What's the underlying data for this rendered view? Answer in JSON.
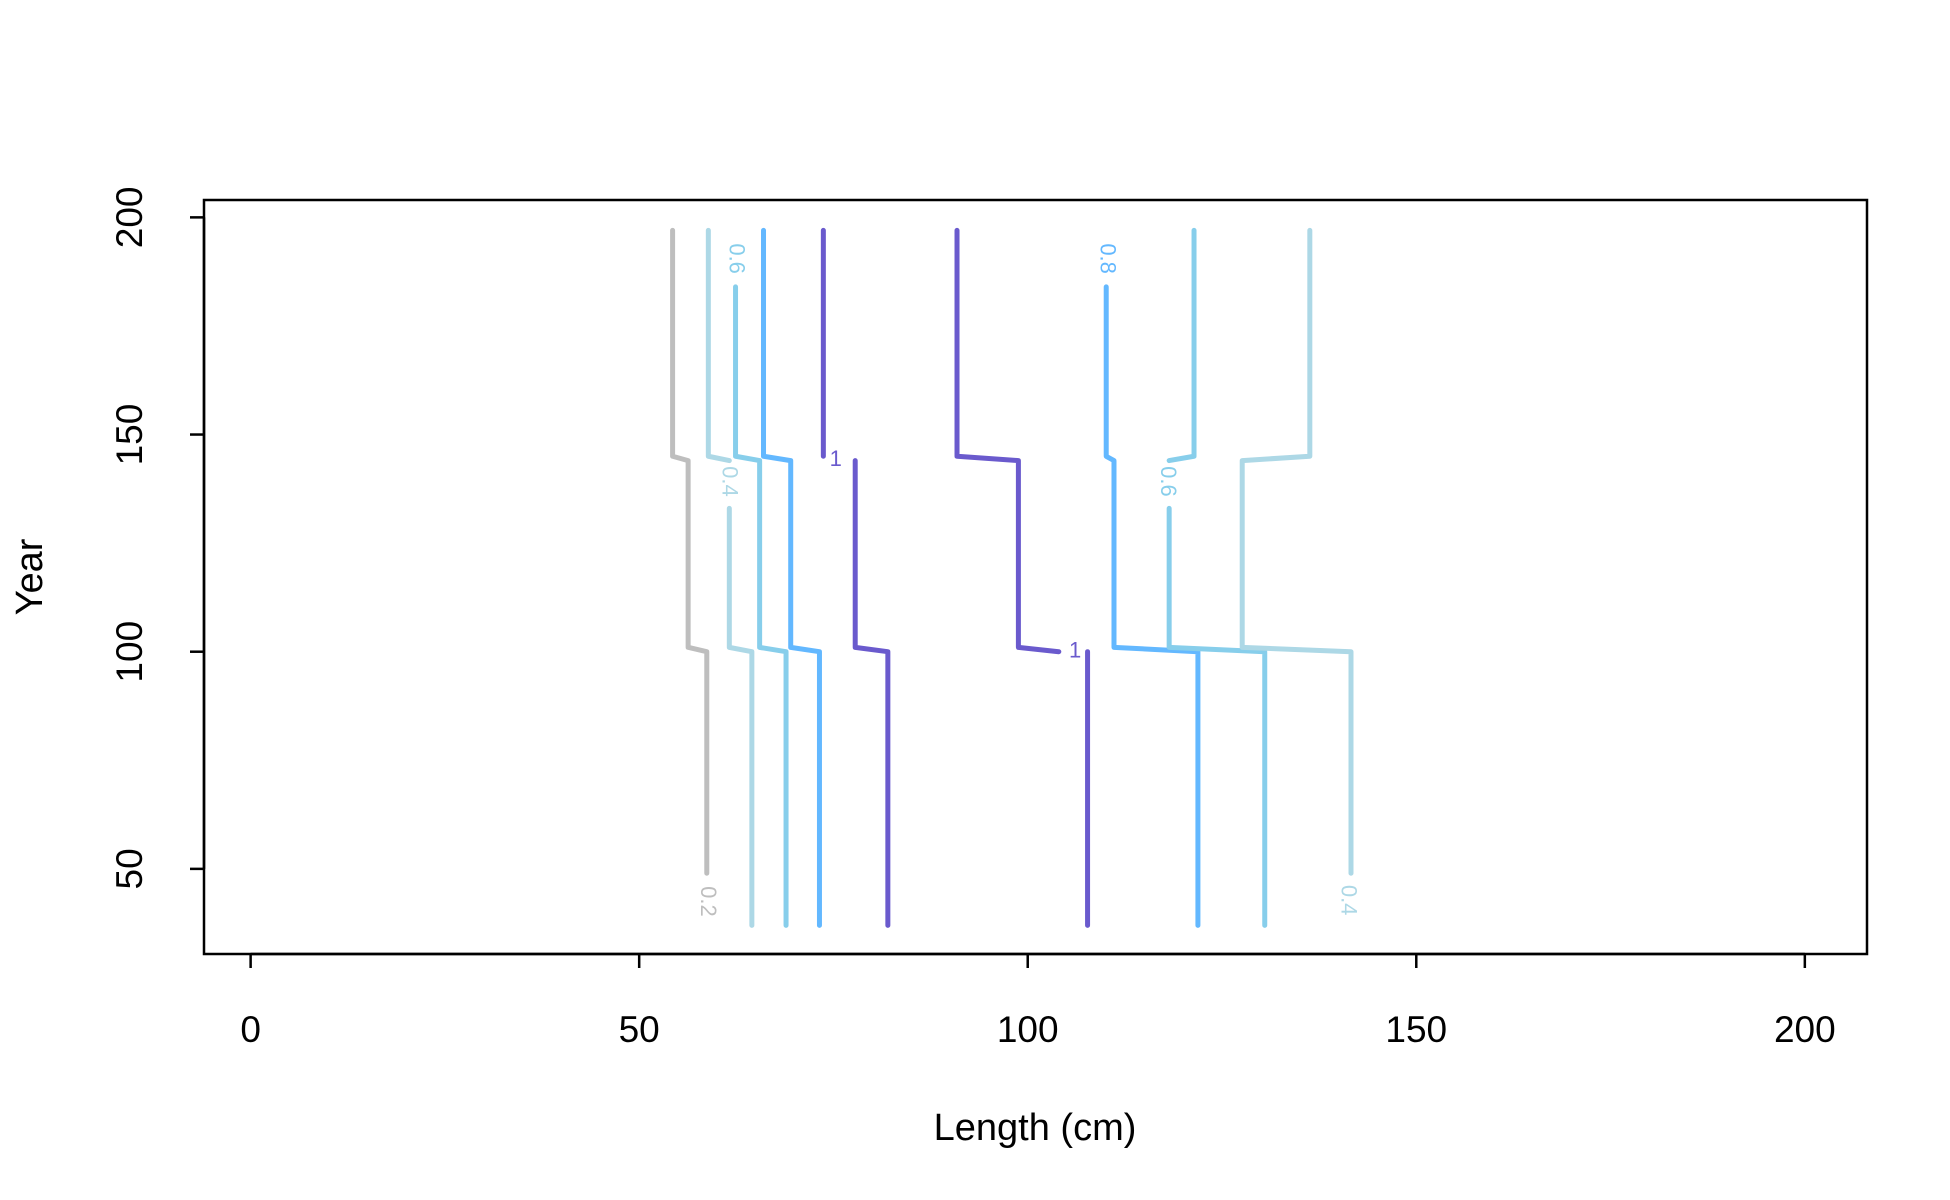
{
  "chart_data": {
    "type": "contour",
    "xlabel": "Length (cm)",
    "ylabel": "Year",
    "xlim": [
      -6,
      208
    ],
    "ylim": [
      30.4,
      204
    ],
    "xticks": [
      0,
      50,
      100,
      150,
      200
    ],
    "yticks": [
      50,
      100,
      150,
      200
    ],
    "series": [
      {
        "color": "#bebebe",
        "x": [
          54.3,
          54.3,
          56.3,
          56.3,
          58.7,
          58.7
        ],
        "y": [
          197,
          145,
          144,
          101,
          100,
          49
        ]
      },
      {
        "color": "#add8e6",
        "x": [
          58.9,
          58.9,
          61.6,
          null,
          61.6,
          61.6,
          64.5,
          64.5
        ],
        "y": [
          197,
          145,
          144,
          null,
          133,
          101,
          100,
          37
        ]
      },
      {
        "color": "#87ceeb",
        "x": [
          62.4,
          null,
          62.4,
          62.4,
          65.5,
          65.5,
          68.9,
          68.9
        ],
        "y": [
          197,
          null,
          184,
          145,
          144,
          101,
          100,
          37
        ]
      },
      {
        "color": "#63b8ff",
        "x": [
          66,
          66,
          69.5,
          69.5,
          73.2,
          73.2
        ],
        "y": [
          197,
          145,
          144,
          101,
          100,
          37
        ]
      },
      {
        "color": "#6a5acd",
        "x": [
          73.7,
          73.7,
          null,
          77.8,
          77.8,
          82,
          82
        ],
        "y": [
          197,
          145,
          null,
          144,
          101,
          100,
          37
        ]
      },
      {
        "color": "#6a5acd",
        "x": [
          90.9,
          90.9,
          98.8,
          98.8,
          104,
          null,
          107.7,
          107.7
        ],
        "y": [
          197,
          145,
          144,
          101,
          100,
          null,
          100,
          37
        ]
      },
      {
        "color": "#63b8ff",
        "x": [
          110.1,
          null,
          110.1,
          110.1,
          111.1,
          111.1,
          121.9,
          121.9
        ],
        "y": [
          197,
          null,
          184,
          145,
          144,
          101,
          100,
          37
        ]
      },
      {
        "color": "#87ceeb",
        "x": [
          121.4,
          121.4,
          118.2,
          null,
          118.2,
          118.2,
          130.5,
          130.5
        ],
        "y": [
          197,
          145,
          144,
          null,
          133,
          101,
          100,
          37
        ]
      },
      {
        "color": "#add8e6",
        "x": [
          136.3,
          136.3,
          127.6,
          127.6,
          141.6,
          141.6
        ],
        "y": [
          197,
          145,
          144,
          101,
          100,
          49
        ]
      }
    ],
    "labels": [
      {
        "text": "0.2",
        "x": 58.7,
        "y": 42.5,
        "angle": 90,
        "color": "#bebebe"
      },
      {
        "text": "0.4",
        "x": 61.5,
        "y": 139.2,
        "angle": 90,
        "color": "#add8e6"
      },
      {
        "text": "0.6",
        "x": 62.4,
        "y": 190.5,
        "angle": 90,
        "color": "#87ceeb"
      },
      {
        "text": "1",
        "x": 75.3,
        "y": 144.1,
        "angle": 0,
        "color": "#6a5acd"
      },
      {
        "text": "1",
        "x": 106.1,
        "y": 100,
        "angle": 0,
        "color": "#6a5acd"
      },
      {
        "text": "0.8",
        "x": 110.1,
        "y": 190.5,
        "angle": 90,
        "color": "#63b8ff"
      },
      {
        "text": "0.6",
        "x": 117.9,
        "y": 139.2,
        "angle": 90,
        "color": "#87ceeb"
      },
      {
        "text": "0.4",
        "x": 141.1,
        "y": 42.8,
        "angle": 90,
        "color": "#add8e6"
      }
    ]
  }
}
